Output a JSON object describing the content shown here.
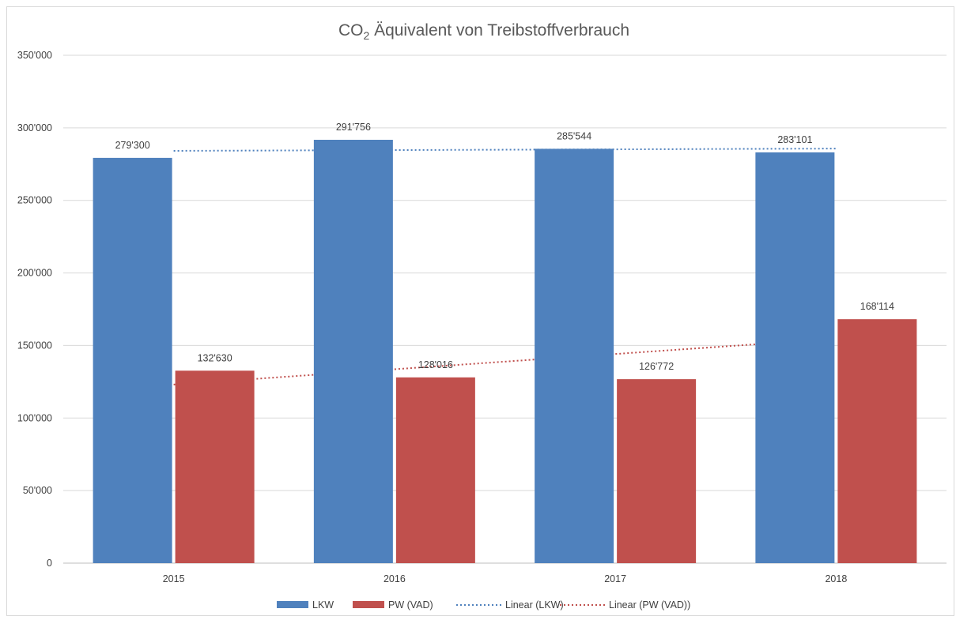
{
  "chart_data": {
    "type": "bar",
    "title": "CO",
    "title_subscript": "2",
    "title_rest": " Äquivalent von Treibstoffverbrauch",
    "categories": [
      "2015",
      "2016",
      "2017",
      "2018"
    ],
    "series": [
      {
        "name": "LKW",
        "values": [
          279300,
          291756,
          285544,
          283101
        ],
        "labels": [
          "279'300",
          "291'756",
          "285'544",
          "283'101"
        ],
        "color": "#4f81bd"
      },
      {
        "name": "PW (VAD)",
        "values": [
          132630,
          128016,
          126772,
          168114
        ],
        "labels": [
          "132'630",
          "128'016",
          "126'772",
          "168'114"
        ],
        "color": "#c0504d"
      }
    ],
    "trendlines": [
      {
        "name": "Linear (LKW)",
        "series": "LKW",
        "type": "linear",
        "style": "dotted",
        "color": "#4f81bd"
      },
      {
        "name": "Linear (PW (VAD))",
        "series": "PW (VAD)",
        "type": "linear",
        "style": "dotted",
        "color": "#c0504d"
      }
    ],
    "ylim": [
      0,
      350000
    ],
    "yticks": [
      0,
      50000,
      100000,
      150000,
      200000,
      250000,
      300000,
      350000
    ],
    "ytick_labels": [
      "0",
      "50'000",
      "100'000",
      "150'000",
      "200'000",
      "250'000",
      "300'000",
      "350'000"
    ],
    "grid": true,
    "legend": "bottom",
    "xlabel": "",
    "ylabel": ""
  }
}
